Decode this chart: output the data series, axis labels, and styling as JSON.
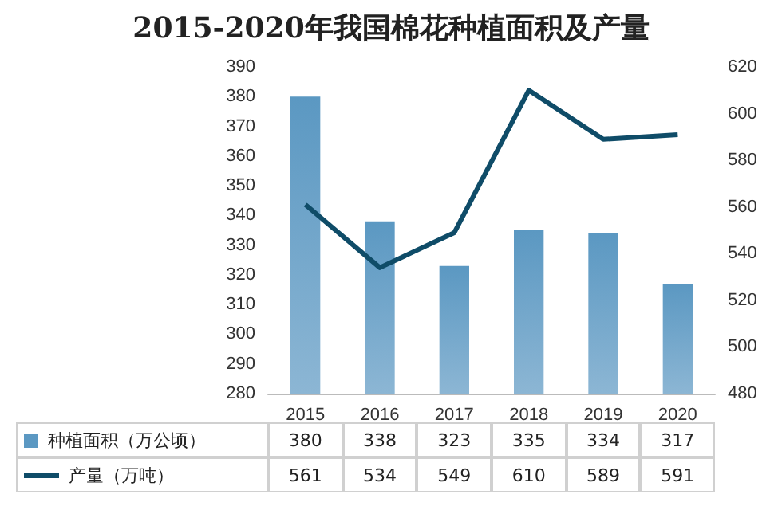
{
  "chart_data": {
    "type": "bar",
    "title": "2015-2020年我国棉花种植面积及产量",
    "categories": [
      "2015",
      "2016",
      "2017",
      "2018",
      "2019",
      "2020"
    ],
    "series": [
      {
        "name": "种植面积（万公顷）",
        "color": "#5b98c2",
        "values": [
          380,
          338,
          323,
          335,
          334,
          317
        ]
      },
      {
        "name": "产量（万吨）",
        "type": "line",
        "axis": "y2",
        "color": "#0f4c68",
        "values": [
          561,
          534,
          549,
          610,
          589,
          591
        ]
      }
    ],
    "ylim": [
      280,
      390
    ],
    "yticks": [
      280,
      290,
      300,
      310,
      320,
      330,
      340,
      350,
      360,
      370,
      380,
      390
    ],
    "y2lim": [
      480,
      620
    ],
    "y2ticks": [
      480,
      500,
      520,
      540,
      560,
      580,
      600,
      620
    ],
    "data_labels": true,
    "legend": "bottom",
    "marker": "none",
    "line_style": "solid",
    "grid": false
  }
}
